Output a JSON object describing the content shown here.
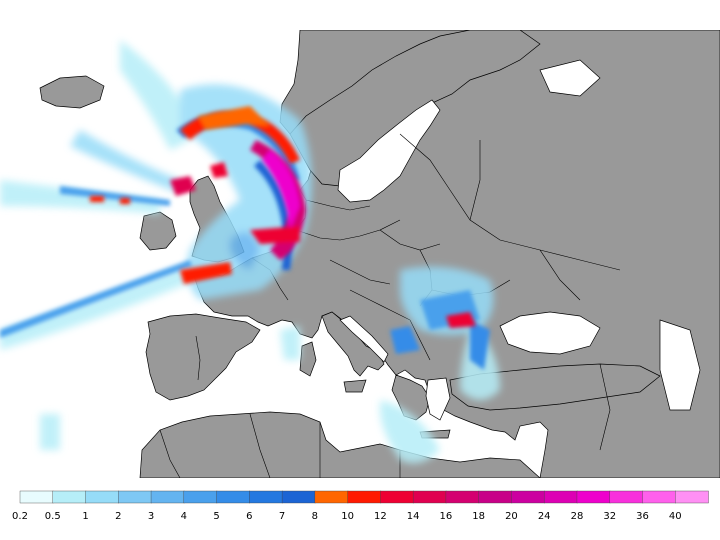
{
  "map": {
    "land_color": "#999999",
    "sea_color": "#ffffff",
    "border_color": "#000000"
  },
  "legend": {
    "labels": [
      "0.2",
      "0.5",
      "1",
      "2",
      "3",
      "4",
      "5",
      "6",
      "7",
      "8",
      "10",
      "12",
      "14",
      "16",
      "18",
      "20",
      "24",
      "28",
      "32",
      "36",
      "40"
    ],
    "colors": [
      "#e8fcfe",
      "#b6eef8",
      "#96dcf8",
      "#7ec8f4",
      "#64b4f0",
      "#4aa0ec",
      "#348ce8",
      "#2478e0",
      "#1c64d4",
      "#ff6600",
      "#ff1a00",
      "#ee0033",
      "#e00050",
      "#d40070",
      "#c80088",
      "#cc00a0",
      "#dd00b4",
      "#ee00cc",
      "#f830dc",
      "#ff60ec",
      "#ff90f4"
    ]
  }
}
